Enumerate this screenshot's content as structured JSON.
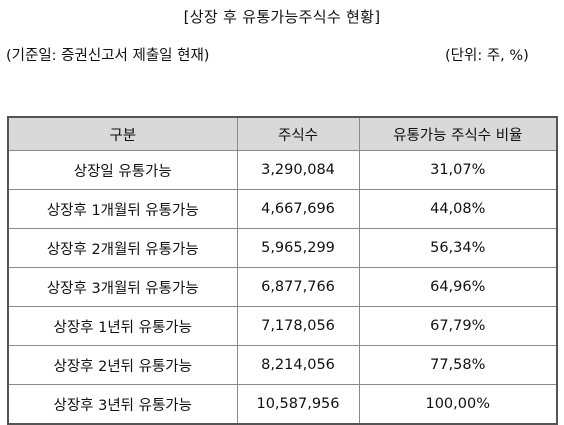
{
  "title": "[상장 후 유통가능주식수 현황]",
  "basis": "(기준일: 증권신고서 제출일 현재)",
  "unit": "(단위: 주, %)",
  "table": {
    "headers": [
      "구분",
      "주식수",
      "유통가능 주식수 비율"
    ],
    "rows": [
      [
        "상장일 유통가능",
        "3,290,084",
        "31,07%"
      ],
      [
        "상장후 1개월뒤 유통가능",
        "4,667,696",
        "44,08%"
      ],
      [
        "상장후 2개월뒤 유통가능",
        "5,965,299",
        "56,34%"
      ],
      [
        "상장후 3개월뒤 유통가능",
        "6,877,766",
        "64,96%"
      ],
      [
        "상장후 1년뒤 유통가능",
        "7,178,056",
        "67,79%"
      ],
      [
        "상장후 2년뒤 유통가능",
        "8,214,056",
        "77,58%"
      ],
      [
        "상장후 3년뒤 유통가능",
        "10,587,956",
        "100,00%"
      ]
    ]
  }
}
